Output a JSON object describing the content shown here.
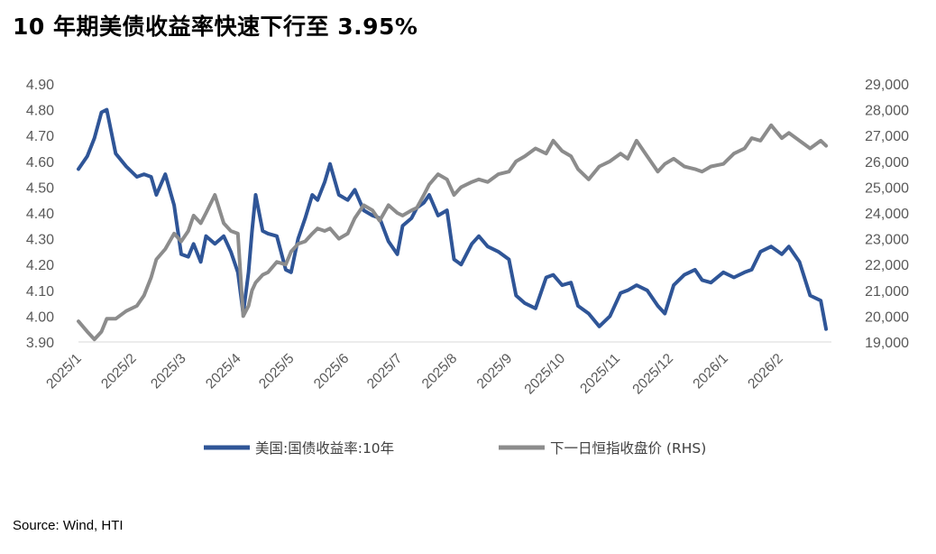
{
  "title": "10 年期美债收益率快速下行至 3.95%",
  "source": "Source: Wind, HTI",
  "colors": {
    "yield": "#2f5597",
    "hsi": "#8c8c8c",
    "axis": "#d9d9d9",
    "text": "#595959"
  },
  "chart_data": {
    "type": "line",
    "title": "10 年期美债收益率快速下行至 3.95%",
    "x_tick_labels": [
      "2025/1",
      "2025/2",
      "2025/3",
      "2025/4",
      "2025/5",
      "2025/6",
      "2025/7",
      "2025/8",
      "2025/9",
      "2025/10",
      "2025/11",
      "2025/12",
      "2026/1",
      "2026/2"
    ],
    "y_left": {
      "ylim": [
        3.9,
        4.9
      ],
      "ticks": [
        "3.90",
        "4.00",
        "4.10",
        "4.20",
        "4.30",
        "4.40",
        "4.50",
        "4.60",
        "4.70",
        "4.80",
        "4.90"
      ]
    },
    "y_right": {
      "ylim": [
        19000,
        29000
      ],
      "ticks": [
        "19,000",
        "20,000",
        "21,000",
        "22,000",
        "23,000",
        "24,000",
        "25,000",
        "26,000",
        "27,000",
        "28,000",
        "29,000"
      ]
    },
    "legend_position": "bottom",
    "grid": false,
    "series": [
      {
        "name": "美国:国债收益率:10年",
        "axis": "left",
        "x": [
          "2025-01-01",
          "2025-01-06",
          "2025-01-10",
          "2025-01-14",
          "2025-01-17",
          "2025-01-22",
          "2025-01-28",
          "2025-02-03",
          "2025-02-07",
          "2025-02-11",
          "2025-02-14",
          "2025-02-19",
          "2025-02-24",
          "2025-02-28",
          "2025-03-04",
          "2025-03-07",
          "2025-03-11",
          "2025-03-14",
          "2025-03-19",
          "2025-03-24",
          "2025-03-28",
          "2025-04-01",
          "2025-04-04",
          "2025-04-07",
          "2025-04-09",
          "2025-04-11",
          "2025-04-15",
          "2025-04-18",
          "2025-04-23",
          "2025-04-28",
          "2025-05-01",
          "2025-05-05",
          "2025-05-09",
          "2025-05-13",
          "2025-05-16",
          "2025-05-20",
          "2025-05-23",
          "2025-05-28",
          "2025-06-02",
          "2025-06-06",
          "2025-06-11",
          "2025-06-16",
          "2025-06-20",
          "2025-06-25",
          "2025-06-30",
          "2025-07-03",
          "2025-07-08",
          "2025-07-11",
          "2025-07-15",
          "2025-07-18",
          "2025-07-23",
          "2025-07-28",
          "2025-08-01",
          "2025-08-05",
          "2025-08-11",
          "2025-08-15",
          "2025-08-20",
          "2025-08-26",
          "2025-09-01",
          "2025-09-05",
          "2025-09-10",
          "2025-09-16",
          "2025-09-22",
          "2025-09-26",
          "2025-10-01",
          "2025-10-06",
          "2025-10-10",
          "2025-10-16",
          "2025-10-22",
          "2025-10-28",
          "2025-11-03",
          "2025-11-07",
          "2025-11-12",
          "2025-11-18",
          "2025-11-24",
          "2025-11-28",
          "2025-12-03",
          "2025-12-09",
          "2025-12-15",
          "2025-12-19",
          "2025-12-24",
          "2025-12-31",
          "2026-01-06",
          "2026-01-12",
          "2026-01-16",
          "2026-01-21",
          "2026-01-27",
          "2026-02-02",
          "2026-02-06",
          "2026-02-12",
          "2026-02-18",
          "2026-02-24",
          "2026-02-27"
        ],
        "values": [
          4.57,
          4.62,
          4.69,
          4.79,
          4.8,
          4.63,
          4.58,
          4.54,
          4.55,
          4.54,
          4.47,
          4.55,
          4.43,
          4.24,
          4.23,
          4.28,
          4.21,
          4.31,
          4.28,
          4.31,
          4.25,
          4.17,
          4.01,
          4.17,
          4.33,
          4.47,
          4.33,
          4.32,
          4.31,
          4.18,
          4.17,
          4.3,
          4.38,
          4.47,
          4.45,
          4.52,
          4.59,
          4.47,
          4.45,
          4.49,
          4.41,
          4.39,
          4.38,
          4.29,
          4.24,
          4.35,
          4.38,
          4.42,
          4.44,
          4.47,
          4.39,
          4.41,
          4.22,
          4.2,
          4.28,
          4.31,
          4.27,
          4.25,
          4.22,
          4.08,
          4.05,
          4.03,
          4.15,
          4.16,
          4.12,
          4.13,
          4.04,
          4.01,
          3.96,
          4.0,
          4.09,
          4.1,
          4.12,
          4.1,
          4.04,
          4.01,
          4.12,
          4.16,
          4.18,
          4.14,
          4.13,
          4.17,
          4.15,
          4.17,
          4.18,
          4.25,
          4.27,
          4.24,
          4.27,
          4.21,
          4.08,
          4.06,
          3.95
        ]
      },
      {
        "name": "下一日恒指收盘价 (RHS)",
        "axis": "right",
        "x": [
          "2025-01-01",
          "2025-01-06",
          "2025-01-10",
          "2025-01-14",
          "2025-01-17",
          "2025-01-22",
          "2025-01-28",
          "2025-02-03",
          "2025-02-07",
          "2025-02-11",
          "2025-02-14",
          "2025-02-19",
          "2025-02-24",
          "2025-02-28",
          "2025-03-04",
          "2025-03-07",
          "2025-03-11",
          "2025-03-14",
          "2025-03-19",
          "2025-03-24",
          "2025-03-28",
          "2025-04-01",
          "2025-04-04",
          "2025-04-07",
          "2025-04-09",
          "2025-04-11",
          "2025-04-15",
          "2025-04-18",
          "2025-04-23",
          "2025-04-28",
          "2025-05-01",
          "2025-05-05",
          "2025-05-09",
          "2025-05-13",
          "2025-05-16",
          "2025-05-20",
          "2025-05-23",
          "2025-05-28",
          "2025-06-02",
          "2025-06-06",
          "2025-06-11",
          "2025-06-16",
          "2025-06-20",
          "2025-06-25",
          "2025-06-30",
          "2025-07-03",
          "2025-07-08",
          "2025-07-11",
          "2025-07-15",
          "2025-07-18",
          "2025-07-23",
          "2025-07-28",
          "2025-08-01",
          "2025-08-05",
          "2025-08-11",
          "2025-08-15",
          "2025-08-20",
          "2025-08-26",
          "2025-09-01",
          "2025-09-05",
          "2025-09-10",
          "2025-09-16",
          "2025-09-22",
          "2025-09-26",
          "2025-10-01",
          "2025-10-06",
          "2025-10-10",
          "2025-10-16",
          "2025-10-22",
          "2025-10-28",
          "2025-11-03",
          "2025-11-07",
          "2025-11-12",
          "2025-11-18",
          "2025-11-24",
          "2025-11-28",
          "2025-12-03",
          "2025-12-09",
          "2025-12-15",
          "2025-12-19",
          "2025-12-24",
          "2025-12-31",
          "2026-01-06",
          "2026-01-12",
          "2026-01-16",
          "2026-01-21",
          "2026-01-27",
          "2026-02-02",
          "2026-02-06",
          "2026-02-12",
          "2026-02-18",
          "2026-02-24",
          "2026-02-27"
        ],
        "values": [
          19800,
          19400,
          19100,
          19400,
          19900,
          19900,
          20200,
          20400,
          20800,
          21500,
          22200,
          22600,
          23200,
          22900,
          23300,
          23900,
          23600,
          24000,
          24700,
          23600,
          23300,
          23200,
          20000,
          20400,
          21000,
          21300,
          21600,
          21700,
          22100,
          22000,
          22500,
          22800,
          22900,
          23200,
          23400,
          23300,
          23400,
          23000,
          23200,
          23800,
          24300,
          24100,
          23700,
          24300,
          24000,
          23900,
          24100,
          24200,
          24700,
          25100,
          25500,
          25300,
          24700,
          25000,
          25200,
          25300,
          25200,
          25500,
          25600,
          26000,
          26200,
          26500,
          26300,
          26800,
          26400,
          26200,
          25700,
          25300,
          25800,
          26000,
          26300,
          26100,
          26800,
          26200,
          25600,
          25900,
          26100,
          25800,
          25700,
          25600,
          25800,
          25900,
          26300,
          26500,
          26900,
          26800,
          27400,
          26900,
          27100,
          26800,
          26500,
          26800,
          26600
        ]
      }
    ]
  }
}
